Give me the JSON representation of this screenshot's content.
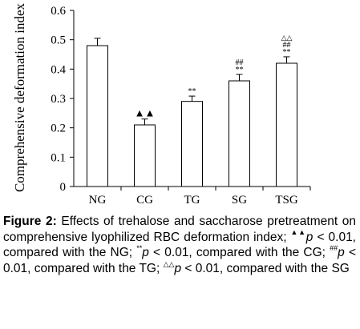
{
  "chart_data": {
    "type": "bar",
    "categories": [
      "NG",
      "CG",
      "TG",
      "SG",
      "TSG"
    ],
    "values": [
      0.48,
      0.21,
      0.29,
      0.36,
      0.42
    ],
    "errors": [
      0.025,
      0.02,
      0.018,
      0.022,
      0.022
    ],
    "significance": [
      "",
      "▲▲",
      "**",
      "##\n**",
      "△△\n##\n**"
    ],
    "ylabel": "Comprehensive deformation index",
    "ylim": [
      0,
      0.6
    ],
    "yticks": [
      "0",
      "0.1",
      "0.2",
      "0.3",
      "0.4",
      "0.5",
      "0.6"
    ],
    "grid": false,
    "bar_fill": "#ffffff",
    "bar_stroke": "#000000"
  },
  "caption": {
    "label": "Figure 2:",
    "text_1": " Effects of trehalose and saccharose pretreatment on comprehensive lyophilized RBC deformation index; ",
    "sym_1": "▲▲",
    "p1": "p",
    "text_2": " < 0.01, compared with the NG; ",
    "sym_2": "**",
    "p2": "p",
    "text_3": " < 0.01, compared with the CG; ",
    "sym_3": "##",
    "p3": "p",
    "text_4": " < 0.01, compared with the TG; ",
    "sym_4": "△△",
    "p4": "p",
    "text_5": " < 0.01, compared with the SG"
  }
}
